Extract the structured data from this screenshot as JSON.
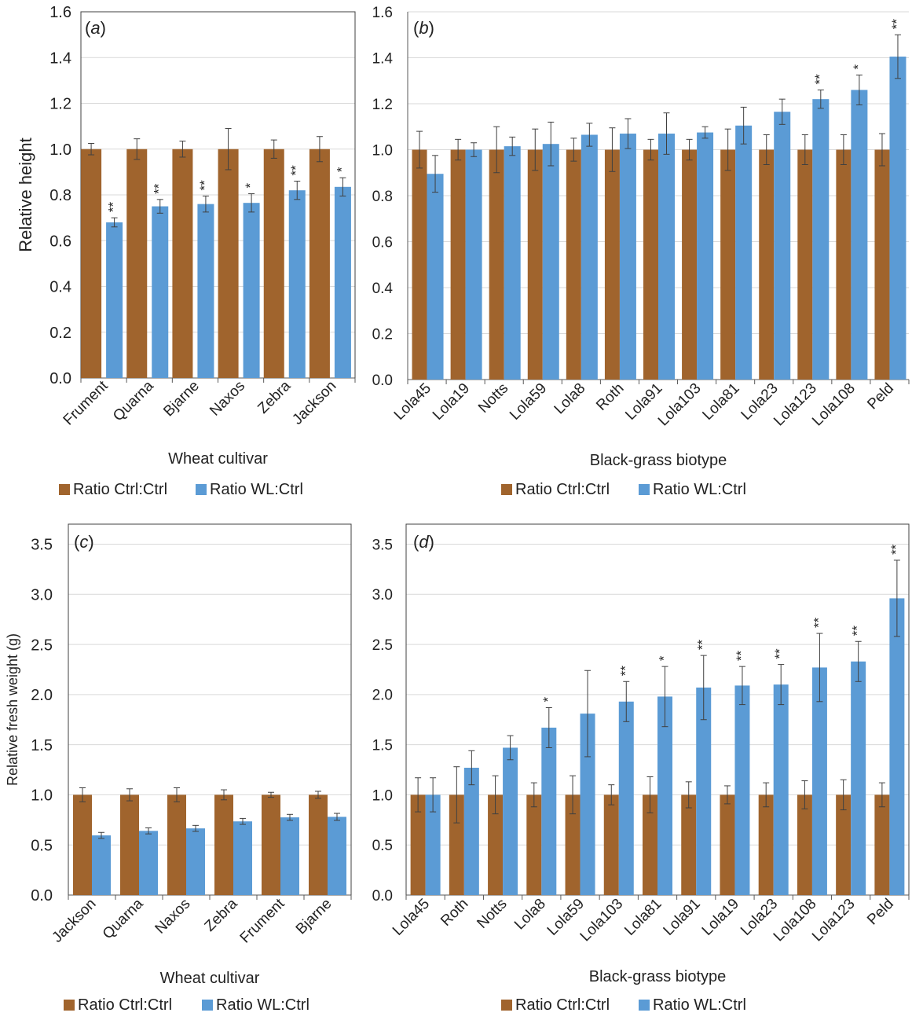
{
  "colors": {
    "ctrl": "#A0642D",
    "wl": "#5B9BD5",
    "grid": "#D9D9D9",
    "axis": "#595959",
    "frame": "#404040",
    "error": "#404040"
  },
  "chart_data": [
    {
      "type": "bar",
      "panel_label": "a",
      "categories": [
        "Frument",
        "Quarna",
        "Bjarne",
        "Naxos",
        "Zebra",
        "Jackson"
      ],
      "series": [
        {
          "name": "Ratio Ctrl:Ctrl",
          "values": [
            1.0,
            1.0,
            1.0,
            1.0,
            1.0,
            1.0
          ],
          "errors": [
            0.025,
            0.045,
            0.035,
            0.09,
            0.04,
            0.055
          ]
        },
        {
          "name": "Ratio WL:Ctrl",
          "values": [
            0.68,
            0.75,
            0.76,
            0.765,
            0.82,
            0.835
          ],
          "errors": [
            0.02,
            0.03,
            0.035,
            0.04,
            0.04,
            0.04
          ],
          "significance": [
            "**",
            "**",
            "**",
            "*",
            "**",
            "*"
          ]
        }
      ],
      "ylabel": "Relative height",
      "xlabel": "Wheat cultivar",
      "ylim": [
        0,
        1.6
      ],
      "yticks": [
        "0.0",
        "0.2",
        "0.4",
        "0.6",
        "0.8",
        "1.0",
        "1.2",
        "1.4",
        "1.6"
      ],
      "legend": [
        "Ratio Ctrl:Ctrl",
        "Ratio WL:Ctrl"
      ]
    },
    {
      "type": "bar",
      "panel_label": "b",
      "categories": [
        "Lola45",
        "Lola19",
        "Notts",
        "Lola59",
        "Lola8",
        "Roth",
        "Lola91",
        "Lola103",
        "Lola81",
        "Lola23",
        "Lola123",
        "Lola108",
        "Peld"
      ],
      "series": [
        {
          "name": "Ratio Ctrl:Ctrl",
          "values": [
            1.0,
            1.0,
            1.0,
            1.0,
            1.0,
            1.0,
            1.0,
            1.0,
            1.0,
            1.0,
            1.0,
            1.0,
            1.0
          ],
          "errors": [
            0.08,
            0.045,
            0.1,
            0.09,
            0.05,
            0.095,
            0.045,
            0.045,
            0.09,
            0.065,
            0.065,
            0.065,
            0.07
          ]
        },
        {
          "name": "Ratio WL:Ctrl",
          "values": [
            0.895,
            1.0,
            1.015,
            1.025,
            1.065,
            1.07,
            1.07,
            1.075,
            1.105,
            1.165,
            1.22,
            1.26,
            1.405
          ],
          "errors": [
            0.08,
            0.03,
            0.04,
            0.095,
            0.05,
            0.065,
            0.09,
            0.025,
            0.08,
            0.055,
            0.04,
            0.065,
            0.095
          ],
          "significance": [
            "",
            "",
            "",
            "",
            "",
            "",
            "",
            "",
            "",
            "",
            "**",
            "*",
            "**"
          ]
        }
      ],
      "ylabel": "",
      "xlabel": "Black-grass biotype",
      "ylim": [
        0,
        1.6
      ],
      "yticks": [
        "0.0",
        "0.2",
        "0.4",
        "0.6",
        "0.8",
        "1.0",
        "1.2",
        "1.4",
        "1.6"
      ],
      "legend": [
        "Ratio Ctrl:Ctrl",
        "Ratio WL:Ctrl"
      ]
    },
    {
      "type": "bar",
      "panel_label": "c",
      "categories": [
        "Jackson",
        "Quarna",
        "Naxos",
        "Zebra",
        "Frument",
        "Bjarne"
      ],
      "series": [
        {
          "name": "Ratio Ctrl:Ctrl",
          "values": [
            1.0,
            1.0,
            1.0,
            1.0,
            1.0,
            1.0
          ],
          "errors": [
            0.07,
            0.06,
            0.07,
            0.05,
            0.025,
            0.035
          ]
        },
        {
          "name": "Ratio WL:Ctrl",
          "values": [
            0.595,
            0.64,
            0.665,
            0.735,
            0.775,
            0.78
          ],
          "errors": [
            0.03,
            0.03,
            0.03,
            0.03,
            0.03,
            0.035
          ],
          "significance": [
            "",
            "",
            "",
            "",
            "",
            ""
          ]
        }
      ],
      "ylabel": "Relative fresh weight (g)",
      "xlabel": "Wheat cultivar",
      "ylim": [
        0,
        3.7
      ],
      "yticks": [
        "0.0",
        "0.5",
        "1.0",
        "1.5",
        "2.0",
        "2.5",
        "3.0",
        "3.5"
      ],
      "legend": [
        "Ratio Ctrl:Ctrl",
        "Ratio WL:Ctrl"
      ]
    },
    {
      "type": "bar",
      "panel_label": "d",
      "categories": [
        "Lola45",
        "Roth",
        "Notts",
        "Lola8",
        "Lola59",
        "Lola103",
        "Lola81",
        "Lola91",
        "Lola19",
        "Lola23",
        "Lola108",
        "Lola123",
        "Peld"
      ],
      "series": [
        {
          "name": "Ratio Ctrl:Ctrl",
          "values": [
            1.0,
            1.0,
            1.0,
            1.0,
            1.0,
            1.0,
            1.0,
            1.0,
            1.0,
            1.0,
            1.0,
            1.0,
            1.0
          ],
          "errors": [
            0.17,
            0.28,
            0.19,
            0.12,
            0.19,
            0.1,
            0.18,
            0.13,
            0.09,
            0.12,
            0.14,
            0.15,
            0.12
          ]
        },
        {
          "name": "Ratio WL:Ctrl",
          "values": [
            1.0,
            1.27,
            1.47,
            1.67,
            1.81,
            1.93,
            1.98,
            2.07,
            2.09,
            2.1,
            2.27,
            2.33,
            2.96
          ],
          "errors": [
            0.17,
            0.17,
            0.12,
            0.2,
            0.43,
            0.2,
            0.3,
            0.32,
            0.19,
            0.2,
            0.34,
            0.2,
            0.38
          ],
          "significance": [
            "",
            "",
            "",
            "*",
            "",
            "**",
            "*",
            "**",
            "**",
            "**",
            "**",
            "**",
            "**"
          ]
        }
      ],
      "ylabel": "",
      "xlabel": "Black-grass biotype",
      "ylim": [
        0,
        3.7
      ],
      "yticks": [
        "0.0",
        "0.5",
        "1.0",
        "1.5",
        "2.0",
        "2.5",
        "3.0",
        "3.5"
      ],
      "legend": [
        "Ratio Ctrl:Ctrl",
        "Ratio WL:Ctrl"
      ]
    }
  ]
}
